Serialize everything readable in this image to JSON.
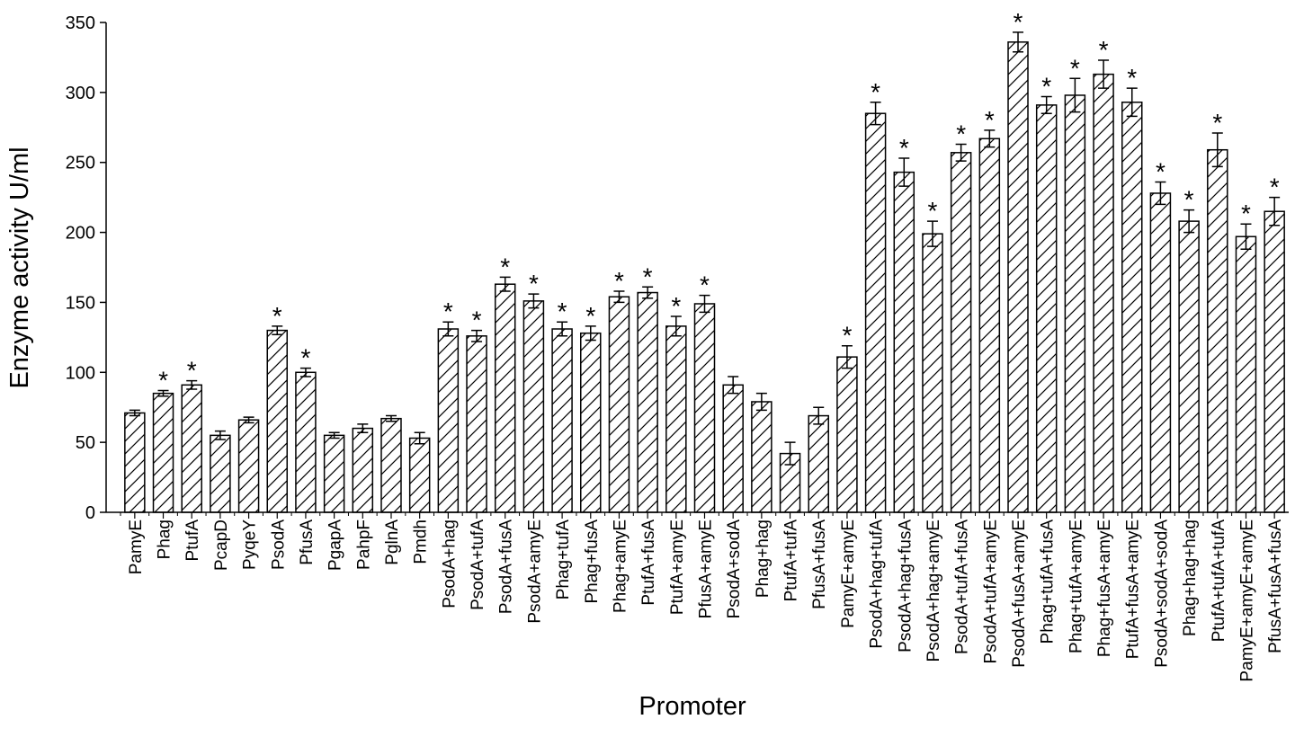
{
  "chart_data": {
    "type": "bar",
    "x_label": "Promoter",
    "y_label": "Enzyme activity U/ml",
    "categories": [
      "PamyE",
      "Phag",
      "PtufA",
      "PcapD",
      "PyqeY",
      "PsodA",
      "PfusA",
      "PgapA",
      "PahpF",
      "PglnA",
      "Pmdh",
      "PsodA+hag",
      "PsodA+tufA",
      "PsodA+fusA",
      "PsodA+amyE",
      "Phag+tufA",
      "Phag+fusA",
      "Phag+amyE",
      "PtufA+fusA",
      "PtufA+amyE",
      "PfusA+amyE",
      "PsodA+sodA",
      "Phag+hag",
      "PtufA+tufA",
      "PfusA+fusA",
      "PamyE+amyE",
      "PsodA+hag+tufA",
      "PsodA+hag+fusA",
      "PsodA+hag+amyE",
      "PsodA+tufA+fusA",
      "PsodA+tufA+amyE",
      "PsodA+fusA+amyE",
      "Phag+tufA+fusA",
      "Phag+tufA+amyE",
      "Phag+fusA+amyE",
      "PtufA+fusA+amyE",
      "PsodA+sodA+sodA",
      "Phag+hag+hag",
      "PtufA+tufA+tufA",
      "PamyE+amyE+amyE",
      "PfusA+fusA+fusA"
    ],
    "values": [
      71,
      85,
      91,
      55,
      66,
      130,
      100,
      55,
      60,
      67,
      53,
      131,
      126,
      163,
      151,
      131,
      128,
      154,
      157,
      133,
      149,
      91,
      79,
      42,
      69,
      111,
      285,
      243,
      199,
      257,
      267,
      336,
      291,
      298,
      313,
      293,
      228,
      208,
      259,
      197,
      215
    ],
    "errors": [
      2,
      2,
      3,
      3,
      2,
      3,
      3,
      2,
      3,
      2,
      4,
      5,
      4,
      5,
      5,
      5,
      5,
      4,
      4,
      7,
      6,
      6,
      6,
      8,
      6,
      8,
      8,
      10,
      9,
      6,
      6,
      7,
      6,
      12,
      10,
      10,
      8,
      8,
      12,
      9,
      10
    ],
    "significance": [
      null,
      "*",
      "*",
      null,
      null,
      "*",
      "*",
      null,
      null,
      null,
      null,
      "*",
      "*",
      "*",
      "*",
      "*",
      "*",
      "*",
      "*",
      "*",
      "*",
      null,
      null,
      null,
      null,
      "*",
      "*",
      "*",
      "*",
      "*",
      "*",
      "*",
      "*",
      "*",
      "*",
      "*",
      "*",
      "*",
      "*",
      "*",
      "*"
    ],
    "color": "#000000",
    "hatch": "diagonal",
    "ylim": [
      0,
      350
    ],
    "yticks": [
      0,
      50,
      100,
      150,
      200,
      250,
      300,
      350
    ]
  }
}
